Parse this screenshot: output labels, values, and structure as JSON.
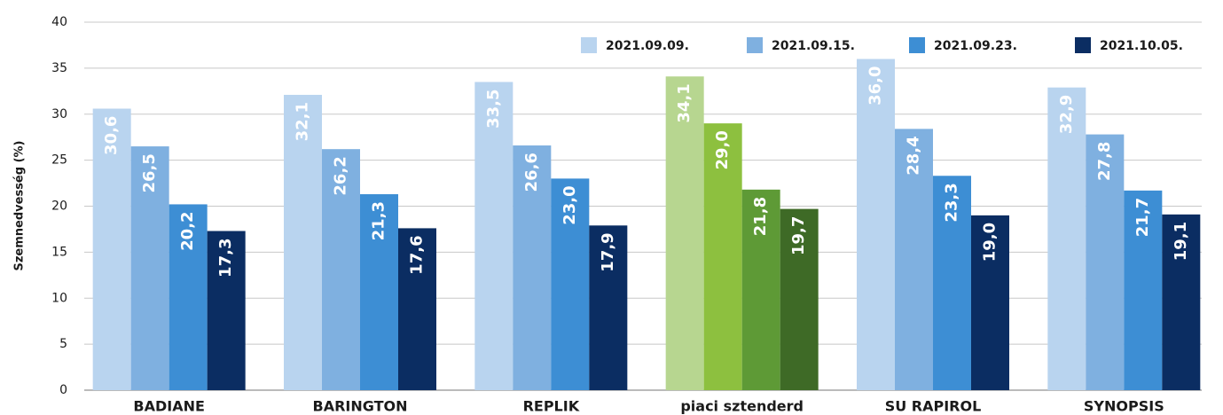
{
  "chart_data": {
    "type": "bar",
    "y_label": "Szemnedvesség (%)",
    "categories": [
      "BADIANE",
      "BARINGTON",
      "REPLIK",
      "piaci sztenderd",
      "SU RAPIROL",
      "SYNOPSIS"
    ],
    "series": [
      {
        "name": "2021.09.09.",
        "color": "#b9d4ef",
        "colors": [
          "#b9d4ef",
          "#b9d4ef",
          "#b9d4ef",
          "#b7d690",
          "#b9d4ef",
          "#b9d4ef"
        ],
        "values": [
          30.6,
          32.1,
          33.5,
          34.1,
          36.0,
          32.9
        ],
        "value_labels": [
          "30,6",
          "32,1",
          "33,5",
          "34,1",
          "36,0",
          "32,9"
        ]
      },
      {
        "name": "2021.09.15.",
        "color": "#7fb0e0",
        "colors": [
          "#7fb0e0",
          "#7fb0e0",
          "#7fb0e0",
          "#8dc03f",
          "#7fb0e0",
          "#7fb0e0"
        ],
        "values": [
          26.5,
          26.2,
          26.6,
          29.0,
          28.4,
          27.8
        ],
        "value_labels": [
          "26,5",
          "26,2",
          "26,6",
          "29,0",
          "28,4",
          "27,8"
        ]
      },
      {
        "name": "2021.09.23.",
        "color": "#3d8ed4",
        "colors": [
          "#3d8ed4",
          "#3d8ed4",
          "#3d8ed4",
          "#5e9a36",
          "#3d8ed4",
          "#3d8ed4"
        ],
        "values": [
          20.2,
          21.3,
          23.0,
          21.8,
          23.3,
          21.7
        ],
        "value_labels": [
          "20,2",
          "21,3",
          "23,0",
          "21,8",
          "23,3",
          "21,7"
        ]
      },
      {
        "name": "2021.10.05.",
        "color": "#0b2d62",
        "colors": [
          "#0b2d62",
          "#0b2d62",
          "#0b2d62",
          "#3e6a26",
          "#0b2d62",
          "#0b2d62"
        ],
        "values": [
          17.3,
          17.6,
          17.9,
          19.7,
          19.0,
          19.1
        ],
        "value_labels": [
          "17,3",
          "17,6",
          "17,9",
          "19,7",
          "19,0",
          "19,1"
        ]
      }
    ],
    "ylim": [
      0,
      40
    ],
    "yticks": [
      0,
      5,
      10,
      15,
      20,
      25,
      30,
      35,
      40
    ],
    "grid": true,
    "legend": "top-right"
  }
}
